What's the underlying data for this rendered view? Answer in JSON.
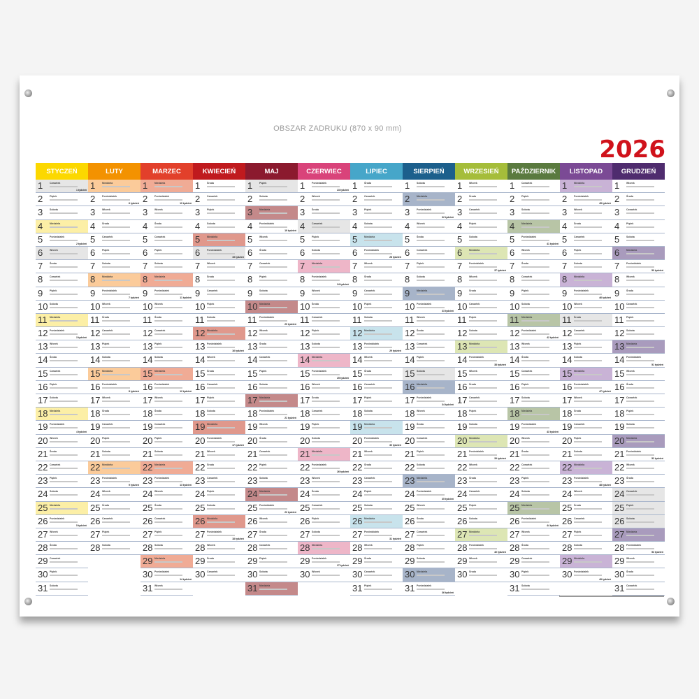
{
  "title": "OBSZAR ZADRUKU  (870 x 90 mm)",
  "year": "2026",
  "week_suffix": "tydzień",
  "weekdays": [
    "Poniedziałek",
    "Wtorek",
    "Środa",
    "Czwartek",
    "Piątek",
    "Sobota",
    "Niedziela"
  ],
  "holiday_color": "#e6e6e6",
  "months": [
    {
      "name": "STYCZEŃ",
      "color": "#fcd800",
      "light": "#fcefa6",
      "first_weekday": "Czwartek",
      "days": 31,
      "holidays": [
        1,
        6
      ]
    },
    {
      "name": "LUTY",
      "color": "#f39200",
      "light": "#fbcb9a",
      "first_weekday": "Niedziela",
      "days": 28,
      "holidays": []
    },
    {
      "name": "MARZEC",
      "color": "#e2402b",
      "light": "#f0ab95",
      "first_weekday": "Niedziela",
      "days": 31,
      "holidays": []
    },
    {
      "name": "KWIECIEŃ",
      "color": "#c01a1e",
      "light": "#e0988c",
      "first_weekday": "Środa",
      "days": 30,
      "holidays": [
        6
      ]
    },
    {
      "name": "MAJ",
      "color": "#8b1a2e",
      "light": "#c4898a",
      "first_weekday": "Piątek",
      "days": 31,
      "holidays": [
        1
      ]
    },
    {
      "name": "CZERWIEC",
      "color": "#d9437a",
      "light": "#eeb6c8",
      "first_weekday": "Poniedziałek",
      "days": 30,
      "holidays": [
        4
      ]
    },
    {
      "name": "LIPIEC",
      "color": "#46a6c9",
      "light": "#c8e3ec",
      "first_weekday": "Środa",
      "days": 31,
      "holidays": []
    },
    {
      "name": "SIERPIEŃ",
      "color": "#1c5f8c",
      "light": "#a7b4c9",
      "first_weekday": "Sobota",
      "days": 31,
      "holidays": [
        15
      ]
    },
    {
      "name": "WRZESIEŃ",
      "color": "#a5bd3a",
      "light": "#dde6b4",
      "first_weekday": "Wtorek",
      "days": 30,
      "holidays": []
    },
    {
      "name": "PAŹDZIERNIK",
      "color": "#5a7a3f",
      "light": "#b8c5a6",
      "first_weekday": "Czwartek",
      "days": 31,
      "holidays": []
    },
    {
      "name": "LISTOPAD",
      "color": "#7b4a95",
      "light": "#c9b3d6",
      "first_weekday": "Niedziela",
      "days": 30,
      "holidays": [
        11
      ]
    },
    {
      "name": "GRUDZIEŃ",
      "color": "#4f2c6e",
      "light": "#a99bbd",
      "first_weekday": "Wtorek",
      "days": 31,
      "holidays": [
        24,
        25,
        26
      ]
    }
  ]
}
